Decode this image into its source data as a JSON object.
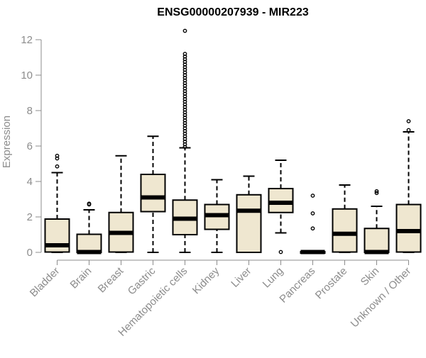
{
  "chart_data": {
    "type": "box",
    "title": "ENSG00000207939 - MIR223",
    "xlabel": "",
    "ylabel": "Expression",
    "ylim": [
      0,
      12
    ],
    "yticks": [
      0,
      2,
      4,
      6,
      8,
      10,
      12
    ],
    "grid": false,
    "legend": "none",
    "colors": {
      "box_fill": "#efe7d0",
      "stroke": "#000000",
      "axis_text": "#8c8c8c"
    },
    "categories": [
      "Bladder",
      "Brain",
      "Breast",
      "Gastric",
      "Hematopoietic cells",
      "Kidney",
      "Liver",
      "Lung",
      "Pancreas",
      "Prostate",
      "Skin",
      "Unknown / Other"
    ],
    "boxes": [
      {
        "category": "Bladder",
        "min": 0,
        "q1": 0.02,
        "median": 0.4,
        "q3": 1.88,
        "max": 4.5,
        "outliers": [
          4.85,
          5.3,
          5.45
        ]
      },
      {
        "category": "Brain",
        "min": 0,
        "q1": 0,
        "median": 0.02,
        "q3": 1.02,
        "max": 2.4,
        "outliers": [
          2.7,
          2.75
        ]
      },
      {
        "category": "Breast",
        "min": 0,
        "q1": 0.02,
        "median": 1.1,
        "q3": 2.25,
        "max": 5.45,
        "outliers": []
      },
      {
        "category": "Gastric",
        "min": 0,
        "q1": 2.3,
        "median": 3.1,
        "q3": 4.4,
        "max": 6.55,
        "outliers": []
      },
      {
        "category": "Hematopoietic cells",
        "min": 0,
        "q1": 1.0,
        "median": 1.9,
        "q3": 2.95,
        "max": 5.9,
        "outliers": [
          5.95,
          6.1,
          6.25,
          6.4,
          6.55,
          6.7,
          6.85,
          7.0,
          7.15,
          7.3,
          7.45,
          7.6,
          7.75,
          7.9,
          8.05,
          8.2,
          8.35,
          8.5,
          8.65,
          8.8,
          8.95,
          9.1,
          9.25,
          9.4,
          9.55,
          9.7,
          9.85,
          10.0,
          10.15,
          10.3,
          10.45,
          10.6,
          10.75,
          10.9,
          11.05,
          11.2,
          12.5
        ]
      },
      {
        "category": "Kidney",
        "min": 0,
        "q1": 1.3,
        "median": 2.1,
        "q3": 2.7,
        "max": 4.1,
        "outliers": []
      },
      {
        "category": "Liver",
        "min": 0,
        "q1": 0,
        "median": 2.35,
        "q3": 3.25,
        "max": 4.3,
        "outliers": []
      },
      {
        "category": "Lung",
        "min": 1.1,
        "q1": 2.25,
        "median": 2.8,
        "q3": 3.6,
        "max": 5.2,
        "outliers": [
          0.02
        ]
      },
      {
        "category": "Pancreas",
        "min": 0,
        "q1": 0,
        "median": 0.02,
        "q3": 0.04,
        "max": 0.04,
        "outliers": [
          1.35,
          2.2,
          3.2
        ]
      },
      {
        "category": "Prostate",
        "min": 0,
        "q1": 0.02,
        "median": 1.05,
        "q3": 2.45,
        "max": 3.8,
        "outliers": []
      },
      {
        "category": "Skin",
        "min": 0,
        "q1": 0,
        "median": 0.02,
        "q3": 1.35,
        "max": 2.6,
        "outliers": [
          3.35,
          3.45
        ]
      },
      {
        "category": "Unknown / Other",
        "min": 0,
        "q1": 0.02,
        "median": 1.2,
        "q3": 2.7,
        "max": 6.8,
        "outliers": [
          6.9,
          7.4
        ]
      }
    ]
  }
}
